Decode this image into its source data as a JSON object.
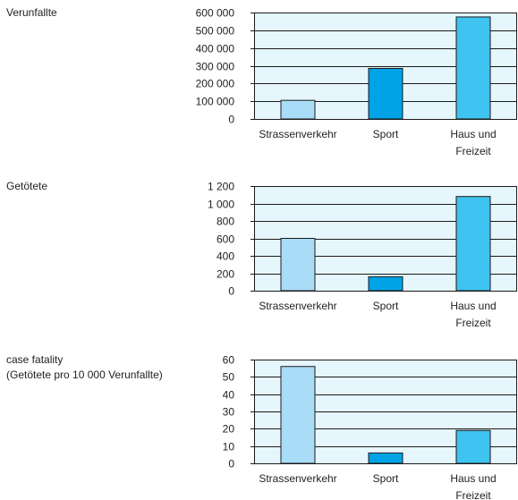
{
  "chart_data": [
    {
      "type": "bar",
      "title": "Verunfallte",
      "subtitle": "",
      "categories": [
        "Strassenverkehr",
        "Sport",
        "Haus und Freizeit"
      ],
      "category_lines": [
        [
          "Strassenverkehr"
        ],
        [
          "Sport"
        ],
        [
          "Haus und",
          "Freizeit"
        ]
      ],
      "values": [
        105000,
        285000,
        575000
      ],
      "colors": [
        "#a9dcf7",
        "#00a3e6",
        "#3fc3f0"
      ],
      "ylim": [
        0,
        600000
      ],
      "yticks": [
        0,
        100000,
        200000,
        300000,
        400000,
        500000,
        600000
      ],
      "ytick_labels": [
        "0",
        "100 000",
        "200 000",
        "300 000",
        "400 000",
        "500 000",
        "600 000"
      ],
      "plot_bg": "#e6f6fd",
      "grid": true,
      "legend": false
    },
    {
      "type": "bar",
      "title": "Getötete",
      "subtitle": "",
      "categories": [
        "Strassenverkehr",
        "Sport",
        "Haus und Freizeit"
      ],
      "category_lines": [
        [
          "Strassenverkehr"
        ],
        [
          "Sport"
        ],
        [
          "Haus und",
          "Freizeit"
        ]
      ],
      "values": [
        600,
        160,
        1080
      ],
      "colors": [
        "#a9dcf7",
        "#00a3e6",
        "#3fc3f0"
      ],
      "ylim": [
        0,
        1200
      ],
      "yticks": [
        0,
        200,
        400,
        600,
        800,
        1000,
        1200
      ],
      "ytick_labels": [
        "0",
        "200",
        "400",
        "600",
        "800",
        "1 000",
        "1 200"
      ],
      "plot_bg": "#e6f6fd",
      "grid": true,
      "legend": false
    },
    {
      "type": "bar",
      "title": "case fatality",
      "subtitle": "(Getötete pro 10 000 Verunfallte)",
      "categories": [
        "Strassenverkehr",
        "Sport",
        "Haus und Freizeit"
      ],
      "category_lines": [
        [
          "Strassenverkehr"
        ],
        [
          "Sport"
        ],
        [
          "Haus und",
          "Freizeit"
        ]
      ],
      "values": [
        56,
        6,
        19
      ],
      "colors": [
        "#a9dcf7",
        "#00a3e6",
        "#3fc3f0"
      ],
      "ylim": [
        0,
        60
      ],
      "yticks": [
        0,
        10,
        20,
        30,
        40,
        50,
        60
      ],
      "ytick_labels": [
        "0",
        "10",
        "20",
        "30",
        "40",
        "50",
        "60"
      ],
      "plot_bg": "#e6f6fd",
      "grid": true,
      "legend": false
    }
  ]
}
